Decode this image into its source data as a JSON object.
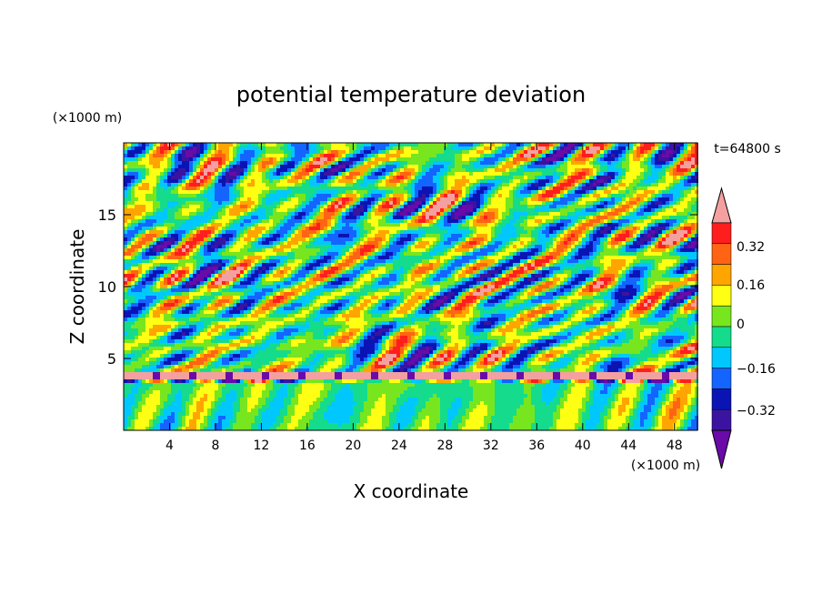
{
  "chart_data": {
    "type": "heatmap",
    "title": "potential temperature deviation",
    "xlabel": "X coordinate",
    "ylabel": "Z coordinate",
    "x_unit": "(×1000 m)",
    "y_unit": "(×1000 m)",
    "time_label": "t=64800 s",
    "xlim": [
      0,
      50
    ],
    "ylim": [
      0,
      20
    ],
    "x_ticks": [
      4,
      8,
      12,
      16,
      20,
      24,
      28,
      32,
      36,
      40,
      44,
      48
    ],
    "y_ticks": [
      5,
      10,
      15
    ],
    "colorbar": {
      "levels": [
        -0.4,
        -0.32,
        -0.24,
        -0.16,
        -0.08,
        0,
        0.08,
        0.16,
        0.24,
        0.32,
        0.4
      ],
      "labels": [
        "0.32",
        "0.16",
        "0",
        "−0.16",
        "−0.32"
      ],
      "colors": [
        "#6a0aa8",
        "#3a14a0",
        "#0a14b4",
        "#1464ff",
        "#00c8ff",
        "#14dc8c",
        "#78e61e",
        "#ffff14",
        "#ffa500",
        "#ff6414",
        "#ff1e1e",
        "#f5a0a0"
      ]
    },
    "grid": false
  }
}
